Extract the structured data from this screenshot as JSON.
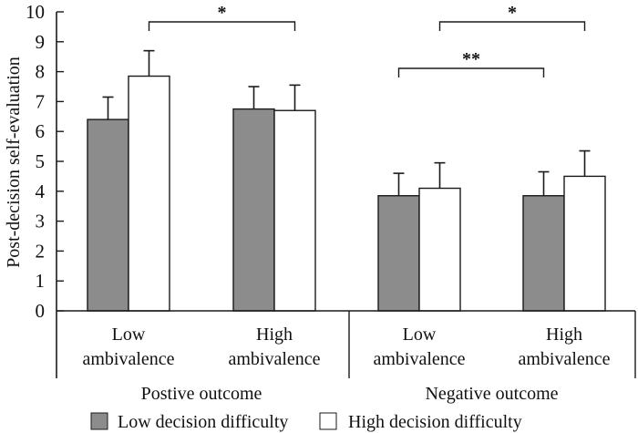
{
  "chart_data": {
    "type": "bar",
    "title": "",
    "ylabel": "Post-decision self-evaluation",
    "xlabel": "",
    "ylim": [
      0,
      10
    ],
    "yticks": [
      0,
      1,
      2,
      3,
      4,
      5,
      6,
      7,
      8,
      9,
      10
    ],
    "grid": false,
    "groups": [
      {
        "label": "Postive outcome",
        "categories": [
          0,
          1
        ]
      },
      {
        "label": "Negative outcome",
        "categories": [
          2,
          3
        ]
      }
    ],
    "categories": [
      [
        "Low",
        "ambivalence"
      ],
      [
        "High",
        "ambivalence"
      ],
      [
        "Low",
        "ambivalence"
      ],
      [
        "High",
        "ambivalence"
      ]
    ],
    "series": [
      {
        "name": "Low decision difficulty",
        "color": "#8c8c8c",
        "values": [
          6.4,
          6.75,
          3.85,
          3.85
        ],
        "error": [
          0.75,
          0.75,
          0.75,
          0.8
        ]
      },
      {
        "name": "High decision difficulty",
        "color": "#ffffff",
        "values": [
          7.85,
          6.7,
          4.1,
          4.5
        ],
        "error": [
          0.85,
          0.85,
          0.85,
          0.85
        ]
      }
    ],
    "significance": [
      {
        "label": "*",
        "from": {
          "category": 0,
          "series": 1
        },
        "to": {
          "category": 1,
          "series": 1
        },
        "level": 1
      },
      {
        "label": "*",
        "from": {
          "category": 2,
          "series": 1
        },
        "to": {
          "category": 3,
          "series": 1
        },
        "level": 1
      },
      {
        "label": "**",
        "from": {
          "category": 2,
          "series": 0
        },
        "to": {
          "category": 3,
          "series": 0
        },
        "level": 2
      }
    ],
    "legend": {
      "placement": "bottom",
      "items": [
        {
          "label": "Low decision difficulty",
          "color": "#8c8c8c"
        },
        {
          "label": "High decision difficulty",
          "color": "#ffffff"
        }
      ]
    }
  }
}
